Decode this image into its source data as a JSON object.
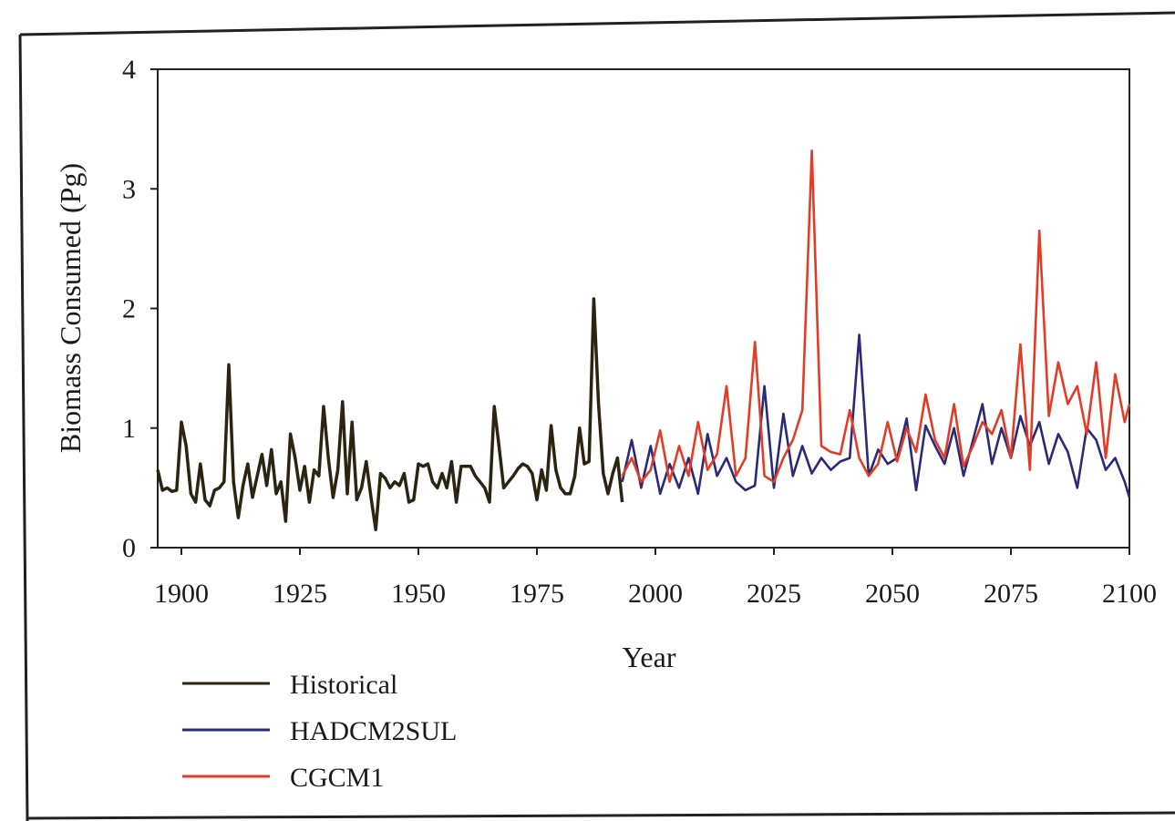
{
  "chart_data": {
    "type": "line",
    "title": "",
    "xlabel": "Year",
    "ylabel": "Biomass Consumed (Pg)",
    "xlim": [
      1895,
      2100
    ],
    "ylim": [
      0,
      4
    ],
    "x_ticks": [
      1900,
      1925,
      1950,
      1975,
      2000,
      2025,
      2050,
      2075,
      2100
    ],
    "y_ticks": [
      0,
      1,
      2,
      3,
      4
    ],
    "grid": false,
    "legend_position": "bottom-left",
    "series": [
      {
        "name": "Historical",
        "color": "#2b2410",
        "x": [
          1895,
          1896,
          1897,
          1898,
          1899,
          1900,
          1901,
          1902,
          1903,
          1904,
          1905,
          1906,
          1907,
          1908,
          1909,
          1910,
          1911,
          1912,
          1913,
          1914,
          1915,
          1916,
          1917,
          1918,
          1919,
          1920,
          1921,
          1922,
          1923,
          1924,
          1925,
          1926,
          1927,
          1928,
          1929,
          1930,
          1931,
          1932,
          1933,
          1934,
          1935,
          1936,
          1937,
          1938,
          1939,
          1940,
          1941,
          1942,
          1943,
          1944,
          1945,
          1946,
          1947,
          1948,
          1949,
          1950,
          1951,
          1952,
          1953,
          1954,
          1955,
          1956,
          1957,
          1958,
          1959,
          1960,
          1961,
          1962,
          1963,
          1964,
          1965,
          1966,
          1967,
          1968,
          1969,
          1970,
          1971,
          1972,
          1973,
          1974,
          1975,
          1976,
          1977,
          1978,
          1979,
          1980,
          1981,
          1982,
          1983,
          1984,
          1985,
          1986,
          1987,
          1988,
          1989,
          1990,
          1991,
          1992,
          1993
        ],
        "y": [
          0.65,
          0.48,
          0.5,
          0.47,
          0.48,
          1.05,
          0.85,
          0.45,
          0.38,
          0.7,
          0.4,
          0.35,
          0.48,
          0.5,
          0.55,
          1.53,
          0.55,
          0.25,
          0.52,
          0.7,
          0.42,
          0.6,
          0.78,
          0.52,
          0.82,
          0.45,
          0.55,
          0.22,
          0.95,
          0.75,
          0.48,
          0.68,
          0.38,
          0.65,
          0.6,
          1.18,
          0.75,
          0.42,
          0.65,
          1.22,
          0.45,
          1.05,
          0.4,
          0.5,
          0.72,
          0.42,
          0.15,
          0.62,
          0.58,
          0.5,
          0.55,
          0.52,
          0.62,
          0.38,
          0.4,
          0.7,
          0.68,
          0.7,
          0.55,
          0.5,
          0.62,
          0.5,
          0.72,
          0.38,
          0.68,
          0.68,
          0.68,
          0.6,
          0.55,
          0.5,
          0.38,
          1.18,
          0.85,
          0.5,
          0.55,
          0.6,
          0.66,
          0.7,
          0.68,
          0.62,
          0.4,
          0.65,
          0.48,
          1.02,
          0.65,
          0.5,
          0.45,
          0.45,
          0.6,
          1.0,
          0.7,
          0.72,
          2.08,
          1.2,
          0.62,
          0.45,
          0.62,
          0.75,
          0.38
        ]
      },
      {
        "name": "HADCM2SUL",
        "color": "#2a2a78",
        "x": [
          1993,
          1995,
          1997,
          1999,
          2001,
          2003,
          2005,
          2007,
          2009,
          2011,
          2013,
          2015,
          2017,
          2019,
          2021,
          2023,
          2025,
          2027,
          2029,
          2031,
          2033,
          2035,
          2037,
          2039,
          2041,
          2043,
          2045,
          2047,
          2049,
          2051,
          2053,
          2055,
          2057,
          2059,
          2061,
          2063,
          2065,
          2067,
          2069,
          2071,
          2073,
          2075,
          2077,
          2079,
          2081,
          2083,
          2085,
          2087,
          2089,
          2091,
          2093,
          2095,
          2097,
          2099,
          2100
        ],
        "y": [
          0.55,
          0.9,
          0.5,
          0.85,
          0.45,
          0.7,
          0.5,
          0.75,
          0.45,
          0.95,
          0.6,
          0.75,
          0.55,
          0.48,
          0.52,
          1.35,
          0.5,
          1.12,
          0.6,
          0.85,
          0.62,
          0.75,
          0.65,
          0.72,
          0.75,
          1.78,
          0.6,
          0.82,
          0.7,
          0.75,
          1.08,
          0.48,
          1.02,
          0.85,
          0.7,
          1.0,
          0.6,
          0.9,
          1.2,
          0.7,
          1.0,
          0.75,
          1.1,
          0.85,
          1.05,
          0.7,
          0.95,
          0.8,
          0.5,
          1.0,
          0.9,
          0.65,
          0.75,
          0.55,
          0.42
        ]
      },
      {
        "name": "CGCM1",
        "color": "#e23b26",
        "x": [
          1993,
          1995,
          1997,
          1999,
          2001,
          2003,
          2005,
          2007,
          2009,
          2011,
          2013,
          2015,
          2017,
          2019,
          2021,
          2023,
          2025,
          2027,
          2029,
          2031,
          2033,
          2035,
          2037,
          2039,
          2041,
          2043,
          2045,
          2047,
          2049,
          2051,
          2053,
          2055,
          2057,
          2059,
          2061,
          2063,
          2065,
          2067,
          2069,
          2071,
          2073,
          2075,
          2077,
          2079,
          2081,
          2083,
          2085,
          2087,
          2089,
          2091,
          2093,
          2095,
          2097,
          2099,
          2100
        ],
        "y": [
          0.6,
          0.75,
          0.55,
          0.65,
          0.98,
          0.55,
          0.85,
          0.6,
          1.05,
          0.65,
          0.78,
          1.35,
          0.6,
          0.75,
          1.72,
          0.6,
          0.55,
          0.75,
          0.9,
          1.15,
          3.32,
          0.85,
          0.8,
          0.78,
          1.15,
          0.75,
          0.6,
          0.7,
          1.05,
          0.72,
          1.0,
          0.8,
          1.28,
          0.9,
          0.75,
          1.2,
          0.68,
          0.85,
          1.05,
          0.95,
          1.15,
          0.75,
          1.7,
          0.65,
          2.65,
          1.1,
          1.55,
          1.2,
          1.35,
          0.95,
          1.55,
          0.75,
          1.45,
          1.05,
          1.2
        ]
      }
    ]
  }
}
